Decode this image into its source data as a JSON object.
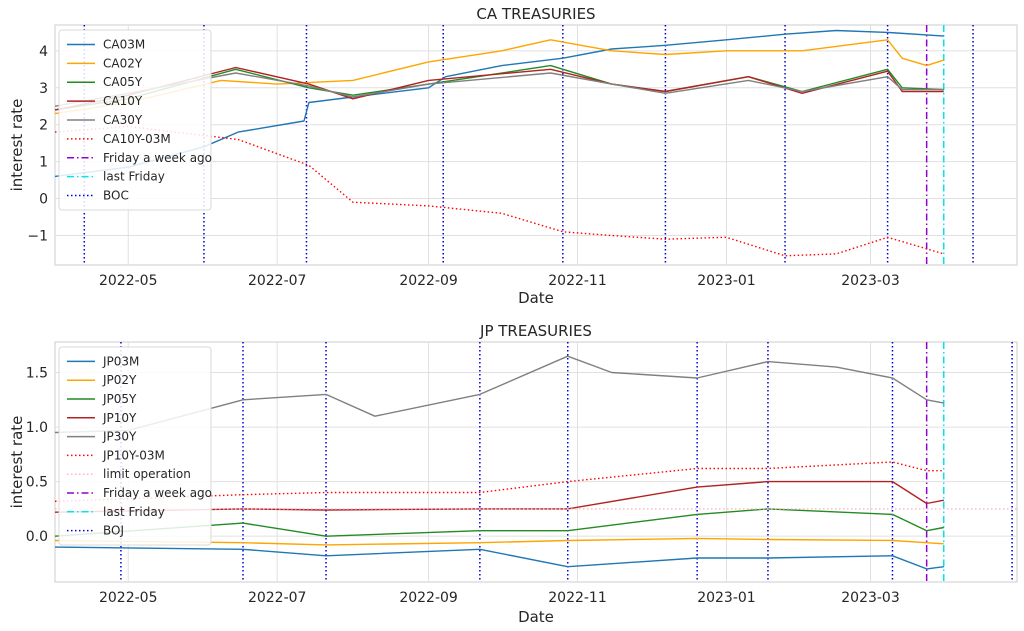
{
  "chart_data": [
    {
      "type": "line",
      "title": "CA TREASURIES",
      "xlabel": "Date",
      "ylabel": "interest rate",
      "xlim": [
        "2022-04-01",
        "2023-04-30"
      ],
      "ylim": [
        -1.8,
        4.7
      ],
      "xticks": [
        "2022-05-01",
        "2022-07-01",
        "2022-09-01",
        "2022-11-01",
        "2023-01-01",
        "2023-03-01"
      ],
      "xtick_labels": [
        "2022-05",
        "2022-07",
        "2022-09",
        "2022-11",
        "2023-01",
        "2023-03"
      ],
      "yticks": [
        -1,
        0,
        1,
        2,
        3,
        4
      ],
      "ytick_labels": [
        "−1",
        "0",
        "1",
        "2",
        "3",
        "4"
      ],
      "grid": true,
      "legend_position": "top-left",
      "series": [
        {
          "name": "CA03M",
          "color": "#1f77b4",
          "style": "solid",
          "x": [
            "2022-04-01",
            "2022-05-01",
            "2022-06-01",
            "2022-06-15",
            "2022-07-12",
            "2022-07-14",
            "2022-08-01",
            "2022-09-01",
            "2022-09-08",
            "2022-10-01",
            "2022-10-26",
            "2022-11-15",
            "2022-12-07",
            "2023-01-01",
            "2023-01-25",
            "2023-02-15",
            "2023-03-08",
            "2023-03-31"
          ],
          "y": [
            0.6,
            0.85,
            1.4,
            1.8,
            2.1,
            2.6,
            2.75,
            3.0,
            3.3,
            3.6,
            3.8,
            4.05,
            4.15,
            4.3,
            4.45,
            4.55,
            4.5,
            4.4
          ]
        },
        {
          "name": "CA02Y",
          "color": "#ffa500",
          "style": "solid",
          "x": [
            "2022-04-01",
            "2022-05-01",
            "2022-06-08",
            "2022-07-01",
            "2022-08-01",
            "2022-09-01",
            "2022-10-01",
            "2022-10-21",
            "2022-11-15",
            "2022-12-07",
            "2023-01-01",
            "2023-02-01",
            "2023-03-08",
            "2023-03-14",
            "2023-03-24",
            "2023-03-31"
          ],
          "y": [
            2.3,
            2.6,
            3.2,
            3.1,
            3.2,
            3.7,
            4.0,
            4.3,
            4.0,
            3.9,
            4.0,
            4.0,
            4.3,
            3.8,
            3.6,
            3.75
          ]
        },
        {
          "name": "CA05Y",
          "color": "#228b22",
          "style": "solid",
          "x": [
            "2022-04-01",
            "2022-05-01",
            "2022-06-14",
            "2022-07-14",
            "2022-08-01",
            "2022-09-01",
            "2022-10-21",
            "2022-11-15",
            "2022-12-07",
            "2023-01-10",
            "2023-02-01",
            "2023-03-08",
            "2023-03-14",
            "2023-03-31"
          ],
          "y": [
            2.4,
            2.7,
            3.5,
            3.0,
            2.8,
            3.1,
            3.6,
            3.1,
            2.9,
            3.3,
            2.9,
            3.5,
            3.0,
            2.95
          ]
        },
        {
          "name": "CA10Y",
          "color": "#b22222",
          "style": "solid",
          "x": [
            "2022-04-01",
            "2022-05-01",
            "2022-06-14",
            "2022-07-14",
            "2022-08-01",
            "2022-09-01",
            "2022-10-21",
            "2022-11-15",
            "2022-12-07",
            "2023-01-10",
            "2023-02-01",
            "2023-03-08",
            "2023-03-14",
            "2023-03-31"
          ],
          "y": [
            2.4,
            2.8,
            3.55,
            3.1,
            2.7,
            3.2,
            3.5,
            3.1,
            2.9,
            3.3,
            2.85,
            3.45,
            2.9,
            2.9
          ]
        },
        {
          "name": "CA30Y",
          "color": "#808080",
          "style": "solid",
          "x": [
            "2022-04-01",
            "2022-05-01",
            "2022-06-14",
            "2022-07-14",
            "2022-08-01",
            "2022-09-01",
            "2022-10-21",
            "2022-11-15",
            "2022-12-07",
            "2023-01-10",
            "2023-02-01",
            "2023-03-08",
            "2023-03-14",
            "2023-03-31"
          ],
          "y": [
            2.5,
            2.85,
            3.4,
            3.05,
            2.75,
            3.1,
            3.4,
            3.1,
            2.85,
            3.2,
            2.9,
            3.3,
            2.95,
            2.95
          ]
        },
        {
          "name": "CA10Y-03M",
          "color": "#ff0000",
          "style": "dotted",
          "x": [
            "2022-04-01",
            "2022-05-01",
            "2022-06-15",
            "2022-07-14",
            "2022-08-01",
            "2022-09-01",
            "2022-10-01",
            "2022-10-26",
            "2022-11-15",
            "2022-12-07",
            "2023-01-01",
            "2023-01-25",
            "2023-02-15",
            "2023-03-08",
            "2023-03-31"
          ],
          "y": [
            1.8,
            1.95,
            1.6,
            0.9,
            -0.1,
            -0.2,
            -0.4,
            -0.9,
            -1.0,
            -1.1,
            -1.05,
            -1.55,
            -1.5,
            -1.05,
            -1.5
          ]
        }
      ],
      "vlines": [
        {
          "name": "Friday a week ago",
          "x": "2023-03-24",
          "color": "#9400d3",
          "style": "dashdot"
        },
        {
          "name": "last Friday",
          "x": "2023-03-31",
          "color": "#00e5ee",
          "style": "dashdot"
        },
        {
          "name": "BOC",
          "x": [
            "2022-04-13",
            "2022-06-01",
            "2022-07-13",
            "2022-09-07",
            "2022-10-26",
            "2022-12-07",
            "2023-01-25",
            "2023-03-08",
            "2023-04-12"
          ],
          "color": "#0000cd",
          "style": "dotted"
        }
      ]
    },
    {
      "type": "line",
      "title": "JP TREASURIES",
      "xlabel": "Date",
      "ylabel": "interest rate",
      "xlim": [
        "2022-04-01",
        "2023-04-30"
      ],
      "ylim": [
        -0.42,
        1.78
      ],
      "xticks": [
        "2022-05-01",
        "2022-07-01",
        "2022-09-01",
        "2022-11-01",
        "2023-01-01",
        "2023-03-01"
      ],
      "xtick_labels": [
        "2022-05",
        "2022-07",
        "2022-09",
        "2022-11",
        "2023-01",
        "2023-03"
      ],
      "yticks": [
        0.0,
        0.5,
        1.0,
        1.5
      ],
      "ytick_labels": [
        "0.0",
        "0.5",
        "1.0",
        "1.5"
      ],
      "grid": true,
      "legend_position": "top-left",
      "series": [
        {
          "name": "JP03M",
          "color": "#1f77b4",
          "style": "solid",
          "x": [
            "2022-04-01",
            "2022-06-17",
            "2022-07-21",
            "2022-09-22",
            "2022-10-28",
            "2022-12-20",
            "2023-01-18",
            "2023-03-10",
            "2023-03-24",
            "2023-03-31"
          ],
          "y": [
            -0.1,
            -0.12,
            -0.18,
            -0.12,
            -0.28,
            -0.2,
            -0.2,
            -0.18,
            -0.3,
            -0.28
          ]
        },
        {
          "name": "JP02Y",
          "color": "#ffa500",
          "style": "solid",
          "x": [
            "2022-04-01",
            "2022-06-17",
            "2022-07-21",
            "2022-09-22",
            "2022-10-28",
            "2022-12-20",
            "2023-01-18",
            "2023-03-10",
            "2023-03-24",
            "2023-03-31"
          ],
          "y": [
            -0.04,
            -0.06,
            -0.08,
            -0.06,
            -0.04,
            -0.02,
            -0.03,
            -0.04,
            -0.06,
            -0.07
          ]
        },
        {
          "name": "JP05Y",
          "color": "#228b22",
          "style": "solid",
          "x": [
            "2022-04-01",
            "2022-06-17",
            "2022-07-21",
            "2022-09-22",
            "2022-10-28",
            "2022-12-20",
            "2023-01-18",
            "2023-03-10",
            "2023-03-24",
            "2023-03-31"
          ],
          "y": [
            0.0,
            0.12,
            0.0,
            0.05,
            0.05,
            0.2,
            0.25,
            0.2,
            0.05,
            0.08
          ]
        },
        {
          "name": "JP10Y",
          "color": "#b22222",
          "style": "solid",
          "x": [
            "2022-04-01",
            "2022-06-17",
            "2022-07-21",
            "2022-09-22",
            "2022-10-28",
            "2022-12-20",
            "2023-01-18",
            "2023-03-10",
            "2023-03-24",
            "2023-03-31"
          ],
          "y": [
            0.22,
            0.25,
            0.24,
            0.25,
            0.25,
            0.45,
            0.5,
            0.5,
            0.3,
            0.33
          ]
        },
        {
          "name": "JP30Y",
          "color": "#808080",
          "style": "solid",
          "x": [
            "2022-04-01",
            "2022-05-01",
            "2022-06-17",
            "2022-07-21",
            "2022-08-10",
            "2022-09-22",
            "2022-10-28",
            "2022-11-15",
            "2022-12-20",
            "2023-01-18",
            "2023-02-15",
            "2023-03-10",
            "2023-03-24",
            "2023-03-31"
          ],
          "y": [
            0.95,
            0.97,
            1.25,
            1.3,
            1.1,
            1.3,
            1.65,
            1.5,
            1.45,
            1.6,
            1.55,
            1.45,
            1.25,
            1.22
          ]
        },
        {
          "name": "JP10Y-03M",
          "color": "#ff0000",
          "style": "dotted",
          "x": [
            "2022-04-01",
            "2022-06-17",
            "2022-07-21",
            "2022-09-22",
            "2022-10-28",
            "2022-12-20",
            "2023-01-18",
            "2023-03-10",
            "2023-03-24",
            "2023-03-31"
          ],
          "y": [
            0.32,
            0.38,
            0.4,
            0.4,
            0.5,
            0.62,
            0.62,
            0.68,
            0.6,
            0.6
          ]
        },
        {
          "name": "limit operation",
          "color": "#ffb6c1",
          "style": "dotted",
          "x": [
            "2022-04-01",
            "2023-04-30"
          ],
          "y": [
            0.25,
            0.25
          ]
        }
      ],
      "vlines": [
        {
          "name": "Friday a week ago",
          "x": "2023-03-24",
          "color": "#9400d3",
          "style": "dashdot"
        },
        {
          "name": "last Friday",
          "x": "2023-03-31",
          "color": "#00e5ee",
          "style": "dashdot"
        },
        {
          "name": "BOJ",
          "x": [
            "2022-04-28",
            "2022-06-17",
            "2022-07-21",
            "2022-09-22",
            "2022-10-28",
            "2022-12-20",
            "2023-01-18",
            "2023-03-10",
            "2023-04-28"
          ],
          "color": "#0000cd",
          "style": "dotted"
        }
      ]
    }
  ]
}
